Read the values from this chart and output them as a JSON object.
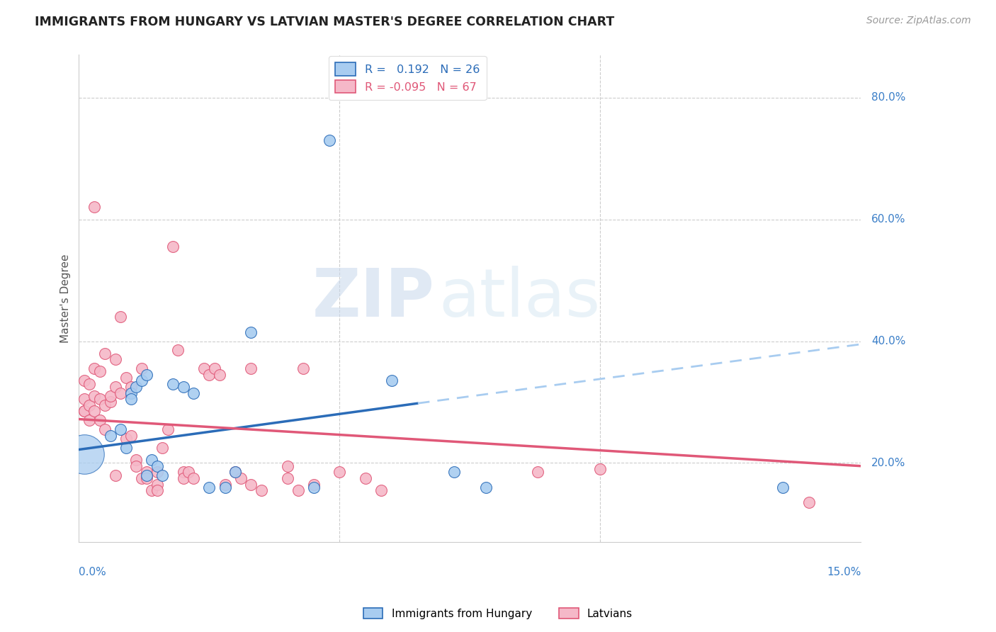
{
  "title": "IMMIGRANTS FROM HUNGARY VS LATVIAN MASTER'S DEGREE CORRELATION CHART",
  "source": "Source: ZipAtlas.com",
  "ylabel": "Master's Degree",
  "yaxis_labels": [
    "20.0%",
    "40.0%",
    "60.0%",
    "80.0%"
  ],
  "yaxis_values": [
    0.2,
    0.4,
    0.6,
    0.8
  ],
  "xlim": [
    0.0,
    0.15
  ],
  "ylim": [
    0.07,
    0.87
  ],
  "legend1_label": "R =   0.192   N = 26",
  "legend2_label": "R = -0.095   N = 67",
  "legend_bottom1": "Immigrants from Hungary",
  "legend_bottom2": "Latvians",
  "watermark_zip": "ZIP",
  "watermark_atlas": "atlas",
  "blue_color": "#A8CCF0",
  "pink_color": "#F5B8C8",
  "trend_blue": "#2B6CB8",
  "trend_pink": "#E05878",
  "blue_scatter": [
    [
      0.001,
      0.215
    ],
    [
      0.006,
      0.245
    ],
    [
      0.008,
      0.255
    ],
    [
      0.009,
      0.225
    ],
    [
      0.01,
      0.315
    ],
    [
      0.01,
      0.305
    ],
    [
      0.011,
      0.325
    ],
    [
      0.012,
      0.335
    ],
    [
      0.013,
      0.345
    ],
    [
      0.013,
      0.18
    ],
    [
      0.014,
      0.205
    ],
    [
      0.015,
      0.195
    ],
    [
      0.016,
      0.18
    ],
    [
      0.018,
      0.33
    ],
    [
      0.02,
      0.325
    ],
    [
      0.022,
      0.315
    ],
    [
      0.025,
      0.16
    ],
    [
      0.028,
      0.16
    ],
    [
      0.03,
      0.185
    ],
    [
      0.033,
      0.415
    ],
    [
      0.045,
      0.16
    ],
    [
      0.048,
      0.73
    ],
    [
      0.06,
      0.335
    ],
    [
      0.072,
      0.185
    ],
    [
      0.078,
      0.16
    ],
    [
      0.135,
      0.16
    ]
  ],
  "blue_sizes": [
    900,
    120,
    120,
    120,
    120,
    120,
    120,
    120,
    120,
    120,
    120,
    120,
    120,
    120,
    120,
    120,
    120,
    120,
    120,
    120,
    120,
    120,
    120,
    120,
    120,
    120
  ],
  "pink_scatter": [
    [
      0.001,
      0.285
    ],
    [
      0.001,
      0.305
    ],
    [
      0.001,
      0.335
    ],
    [
      0.001,
      0.285
    ],
    [
      0.002,
      0.295
    ],
    [
      0.002,
      0.27
    ],
    [
      0.002,
      0.33
    ],
    [
      0.003,
      0.31
    ],
    [
      0.003,
      0.285
    ],
    [
      0.003,
      0.355
    ],
    [
      0.003,
      0.62
    ],
    [
      0.004,
      0.27
    ],
    [
      0.004,
      0.305
    ],
    [
      0.004,
      0.35
    ],
    [
      0.005,
      0.255
    ],
    [
      0.005,
      0.295
    ],
    [
      0.005,
      0.38
    ],
    [
      0.006,
      0.3
    ],
    [
      0.006,
      0.31
    ],
    [
      0.007,
      0.325
    ],
    [
      0.007,
      0.37
    ],
    [
      0.007,
      0.18
    ],
    [
      0.008,
      0.315
    ],
    [
      0.008,
      0.44
    ],
    [
      0.009,
      0.34
    ],
    [
      0.009,
      0.24
    ],
    [
      0.01,
      0.245
    ],
    [
      0.01,
      0.325
    ],
    [
      0.011,
      0.205
    ],
    [
      0.011,
      0.195
    ],
    [
      0.012,
      0.355
    ],
    [
      0.012,
      0.175
    ],
    [
      0.013,
      0.185
    ],
    [
      0.013,
      0.175
    ],
    [
      0.014,
      0.155
    ],
    [
      0.015,
      0.185
    ],
    [
      0.015,
      0.165
    ],
    [
      0.015,
      0.155
    ],
    [
      0.016,
      0.225
    ],
    [
      0.017,
      0.255
    ],
    [
      0.018,
      0.555
    ],
    [
      0.019,
      0.385
    ],
    [
      0.02,
      0.185
    ],
    [
      0.02,
      0.175
    ],
    [
      0.021,
      0.185
    ],
    [
      0.022,
      0.175
    ],
    [
      0.024,
      0.355
    ],
    [
      0.025,
      0.345
    ],
    [
      0.026,
      0.355
    ],
    [
      0.027,
      0.345
    ],
    [
      0.028,
      0.165
    ],
    [
      0.03,
      0.185
    ],
    [
      0.031,
      0.175
    ],
    [
      0.033,
      0.165
    ],
    [
      0.033,
      0.355
    ],
    [
      0.035,
      0.155
    ],
    [
      0.04,
      0.175
    ],
    [
      0.04,
      0.195
    ],
    [
      0.042,
      0.155
    ],
    [
      0.043,
      0.355
    ],
    [
      0.045,
      0.165
    ],
    [
      0.05,
      0.185
    ],
    [
      0.055,
      0.175
    ],
    [
      0.058,
      0.155
    ],
    [
      0.088,
      0.185
    ],
    [
      0.1,
      0.19
    ],
    [
      0.14,
      0.135
    ]
  ],
  "blue_solid_line": [
    [
      0.0,
      0.222
    ],
    [
      0.065,
      0.298
    ]
  ],
  "blue_dashed_line": [
    [
      0.065,
      0.298
    ],
    [
      0.15,
      0.395
    ]
  ],
  "pink_solid_line": [
    [
      0.0,
      0.272
    ],
    [
      0.15,
      0.195
    ]
  ],
  "grid_color": "#CCCCCC",
  "grid_linestyle": "--",
  "spine_color": "#CCCCCC",
  "title_color": "#222222",
  "source_color": "#999999",
  "ylabel_color": "#555555",
  "axis_label_color": "#3A7EC8",
  "legend_r_blue": "#2B6CB8",
  "legend_r_pink": "#E05878"
}
